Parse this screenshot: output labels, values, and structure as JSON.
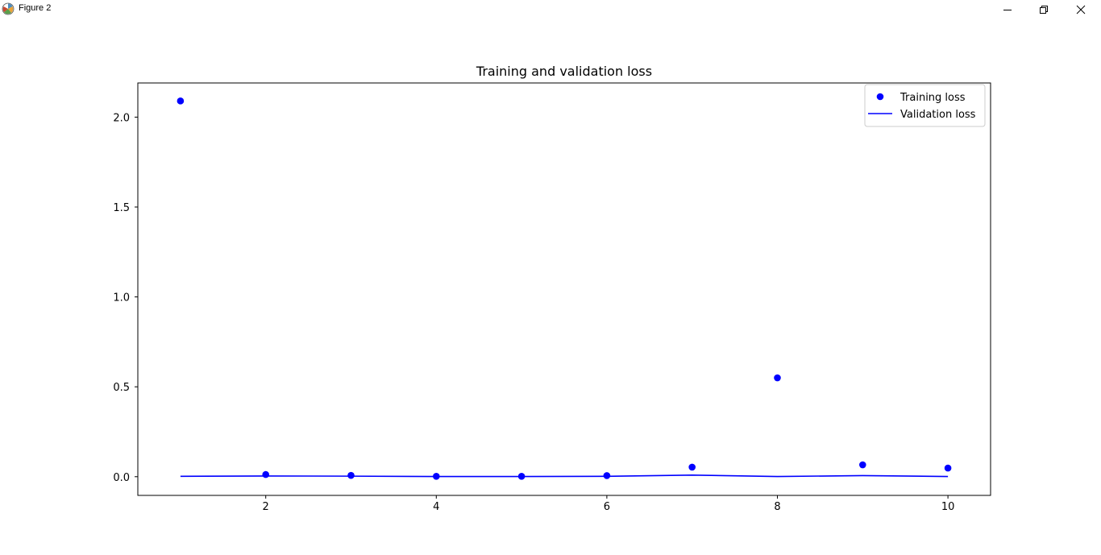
{
  "window": {
    "title": "Figure 2",
    "app_icon": "matplotlib-icon",
    "controls": [
      "minimize-icon",
      "maximize-icon",
      "close-icon"
    ]
  },
  "chart_data": {
    "type": "scatter",
    "title": "Training and validation loss",
    "xlabel": "",
    "ylabel": "",
    "xlim": [
      0.5,
      10.5
    ],
    "ylim": [
      -0.104,
      2.19
    ],
    "xticks": [
      2,
      4,
      6,
      8,
      10
    ],
    "yticks": [
      0.0,
      0.5,
      1.0,
      1.5,
      2.0
    ],
    "xtick_labels": [
      "2",
      "4",
      "6",
      "8",
      "10"
    ],
    "ytick_labels": [
      "0.0",
      "0.5",
      "1.0",
      "1.5",
      "2.0"
    ],
    "grid": false,
    "legend_position": "upper right",
    "series": [
      {
        "name": "Training loss",
        "style": "markers",
        "color": "#0000ff",
        "x": [
          1,
          2,
          3,
          4,
          5,
          6,
          7,
          8,
          9,
          10
        ],
        "y": [
          2.09,
          0.012,
          0.007,
          0.002,
          0.002,
          0.006,
          0.053,
          0.55,
          0.066,
          0.048
        ]
      },
      {
        "name": "Validation loss",
        "style": "line",
        "color": "#0000ff",
        "x": [
          1,
          2,
          3,
          4,
          5,
          6,
          7,
          8,
          9,
          10
        ],
        "y": [
          0.002,
          0.004,
          0.003,
          0.001,
          0.001,
          0.002,
          0.009,
          0.001,
          0.006,
          0.001
        ]
      }
    ]
  }
}
